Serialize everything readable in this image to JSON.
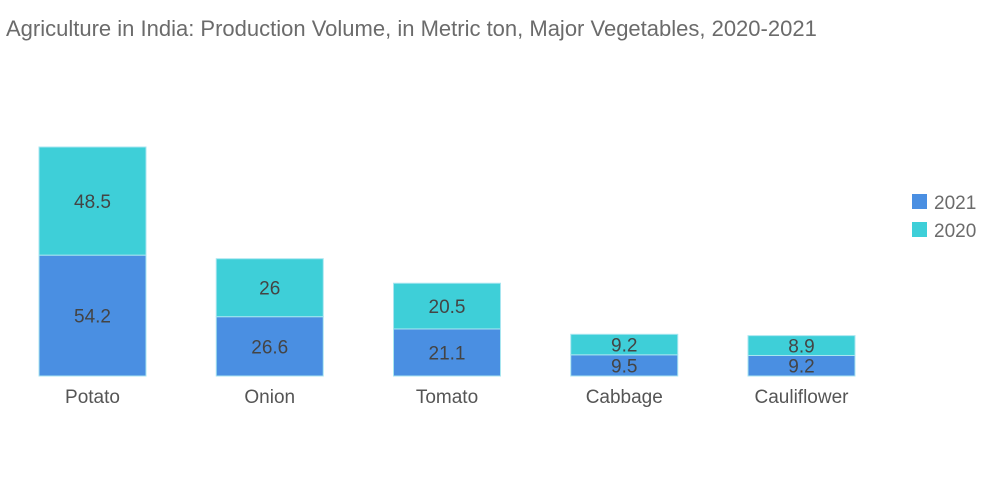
{
  "chart_data": {
    "type": "bar",
    "stacked": true,
    "title": "Agriculture in India: Production Volume, in Metric ton, Major Vegetables, 2020-2021",
    "categories": [
      "Potato",
      "Onion",
      "Tomato",
      "Cabbage",
      "Cauliflower"
    ],
    "series": [
      {
        "name": "2021",
        "color": "#4a8fe2",
        "values": [
          54.2,
          26.6,
          21.1,
          9.5,
          9.2
        ]
      },
      {
        "name": "2020",
        "color": "#3ecfd8",
        "values": [
          48.5,
          26,
          20.5,
          9.2,
          8.9
        ]
      }
    ],
    "ylim": [
      0,
      103
    ],
    "grid": false,
    "legend_position": "right",
    "data_labels": true
  }
}
